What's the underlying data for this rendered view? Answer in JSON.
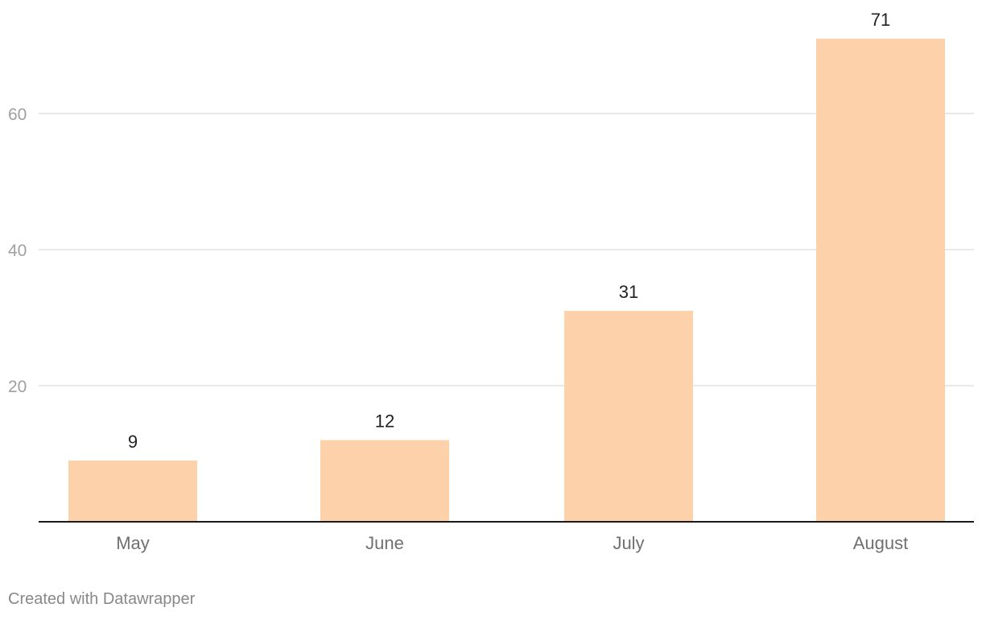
{
  "chart_data": {
    "type": "bar",
    "categories": [
      "May",
      "June",
      "July",
      "August"
    ],
    "values": [
      9,
      12,
      31,
      71
    ],
    "value_labels": [
      "9",
      "12",
      "31",
      "71"
    ],
    "y_ticks": [
      20,
      40,
      60
    ],
    "ylim": [
      0,
      75
    ],
    "grid": true,
    "legend": "none",
    "title": "",
    "xlabel": "",
    "ylabel": "",
    "bar_color": "#fdd2aa"
  },
  "footer": {
    "credit": "Created with Datawrapper"
  }
}
